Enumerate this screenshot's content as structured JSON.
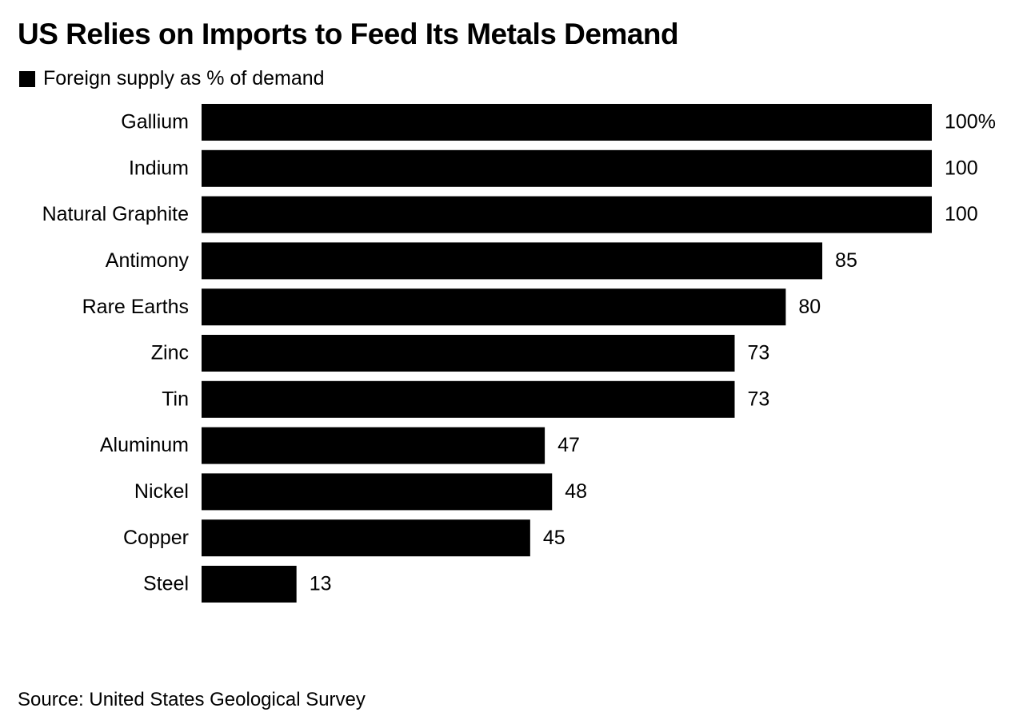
{
  "chart_data": {
    "type": "bar",
    "orientation": "horizontal",
    "title": "US Relies on Imports to Feed Its Metals Demand",
    "legend": [
      "Foreign supply as % of demand"
    ],
    "legend_placement": "top-left",
    "categories": [
      "Gallium",
      "Indium",
      "Natural Graphite",
      "Antimony",
      "Rare Earths",
      "Zinc",
      "Tin",
      "Aluminum",
      "Nickel",
      "Copper",
      "Steel"
    ],
    "values": [
      100,
      100,
      100,
      85,
      80,
      73,
      73,
      47,
      48,
      45,
      13
    ],
    "value_labels": [
      "100%",
      "100",
      "100",
      "85",
      "80",
      "73",
      "73",
      "47",
      "48",
      "45",
      "13"
    ],
    "xlim": [
      0,
      100
    ],
    "bar_color": "#000000",
    "source": "Source: United States Geological Survey"
  }
}
